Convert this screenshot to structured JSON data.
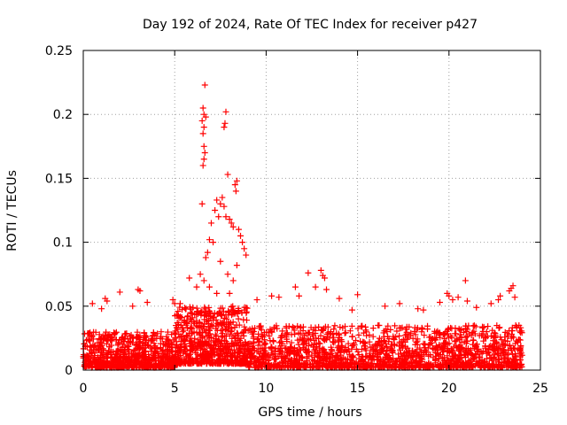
{
  "chart_data": {
    "type": "scatter",
    "title": "Day 192 of 2024, Rate Of TEC Index for receiver p427",
    "xlabel": "GPS time / hours",
    "ylabel": "ROTI / TECUs",
    "xlim": [
      0,
      25
    ],
    "ylim": [
      0,
      0.25
    ],
    "xticks": [
      0,
      5,
      10,
      15,
      20,
      25
    ],
    "yticks": [
      0,
      0.05,
      0.1,
      0.15,
      0.2,
      0.25
    ],
    "xtick_labels": [
      "0",
      "5",
      "10",
      "15",
      "20",
      "25"
    ],
    "ytick_labels": [
      "0",
      "0.05",
      "0.1",
      "0.15",
      "0.2",
      "0.25"
    ],
    "grid": true,
    "marker": "+",
    "series": [
      {
        "name": "ROTI",
        "color": "#ff0000",
        "background_density": [
          {
            "x_range": [
              0,
              5
            ],
            "y_range": [
              0.002,
              0.03
            ],
            "count": 700
          },
          {
            "x_range": [
              5,
              9
            ],
            "y_range": [
              0.005,
              0.05
            ],
            "count": 700
          },
          {
            "x_range": [
              9,
              24
            ],
            "y_range": [
              0.002,
              0.035
            ],
            "count": 1600
          }
        ],
        "points": [
          [
            6.65,
            0.223
          ],
          [
            6.55,
            0.205
          ],
          [
            6.6,
            0.2
          ],
          [
            6.7,
            0.198
          ],
          [
            6.5,
            0.195
          ],
          [
            6.6,
            0.19
          ],
          [
            6.55,
            0.185
          ],
          [
            6.6,
            0.175
          ],
          [
            6.65,
            0.17
          ],
          [
            6.6,
            0.165
          ],
          [
            6.55,
            0.16
          ],
          [
            7.8,
            0.202
          ],
          [
            7.75,
            0.193
          ],
          [
            7.7,
            0.19
          ],
          [
            8.4,
            0.148
          ],
          [
            8.3,
            0.145
          ],
          [
            8.35,
            0.14
          ],
          [
            7.9,
            0.153
          ],
          [
            7.6,
            0.135
          ],
          [
            7.5,
            0.13
          ],
          [
            7.3,
            0.133
          ],
          [
            7.7,
            0.128
          ],
          [
            7.2,
            0.125
          ],
          [
            7.4,
            0.12
          ],
          [
            7.8,
            0.12
          ],
          [
            8.0,
            0.118
          ],
          [
            8.1,
            0.115
          ],
          [
            8.2,
            0.112
          ],
          [
            8.5,
            0.11
          ],
          [
            8.6,
            0.105
          ],
          [
            8.7,
            0.1
          ],
          [
            6.5,
            0.13
          ],
          [
            7.0,
            0.115
          ],
          [
            6.9,
            0.102
          ],
          [
            7.1,
            0.1
          ],
          [
            8.8,
            0.095
          ],
          [
            8.9,
            0.09
          ],
          [
            6.8,
            0.092
          ],
          [
            6.7,
            0.088
          ],
          [
            7.5,
            0.085
          ],
          [
            8.4,
            0.082
          ],
          [
            6.4,
            0.075
          ],
          [
            6.6,
            0.07
          ],
          [
            7.9,
            0.075
          ],
          [
            8.2,
            0.07
          ],
          [
            5.8,
            0.072
          ],
          [
            6.9,
            0.065
          ],
          [
            7.3,
            0.06
          ],
          [
            8.0,
            0.06
          ],
          [
            6.2,
            0.065
          ],
          [
            12.3,
            0.076
          ],
          [
            13.0,
            0.078
          ],
          [
            13.1,
            0.074
          ],
          [
            13.2,
            0.072
          ],
          [
            20.9,
            0.07
          ],
          [
            11.6,
            0.065
          ],
          [
            12.7,
            0.065
          ],
          [
            13.3,
            0.063
          ],
          [
            23.5,
            0.066
          ],
          [
            23.4,
            0.064
          ],
          [
            23.3,
            0.062
          ],
          [
            19.9,
            0.06
          ],
          [
            20.0,
            0.058
          ],
          [
            3.0,
            0.063
          ],
          [
            3.1,
            0.062
          ],
          [
            2.0,
            0.061
          ],
          [
            1.2,
            0.056
          ],
          [
            1.3,
            0.054
          ],
          [
            15.0,
            0.059
          ],
          [
            14.0,
            0.056
          ],
          [
            9.5,
            0.055
          ],
          [
            10.3,
            0.058
          ],
          [
            10.7,
            0.057
          ],
          [
            11.8,
            0.058
          ],
          [
            20.5,
            0.057
          ],
          [
            20.2,
            0.055
          ],
          [
            17.3,
            0.052
          ],
          [
            19.5,
            0.053
          ],
          [
            22.8,
            0.058
          ],
          [
            22.7,
            0.055
          ],
          [
            23.6,
            0.057
          ],
          [
            22.3,
            0.052
          ],
          [
            21.0,
            0.054
          ],
          [
            4.9,
            0.055
          ],
          [
            5.0,
            0.052
          ],
          [
            5.3,
            0.052
          ],
          [
            3.5,
            0.053
          ],
          [
            2.7,
            0.05
          ],
          [
            0.5,
            0.052
          ],
          [
            1.0,
            0.048
          ],
          [
            16.5,
            0.05
          ],
          [
            18.3,
            0.048
          ],
          [
            18.6,
            0.047
          ],
          [
            21.5,
            0.049
          ],
          [
            14.7,
            0.047
          ]
        ]
      }
    ]
  }
}
